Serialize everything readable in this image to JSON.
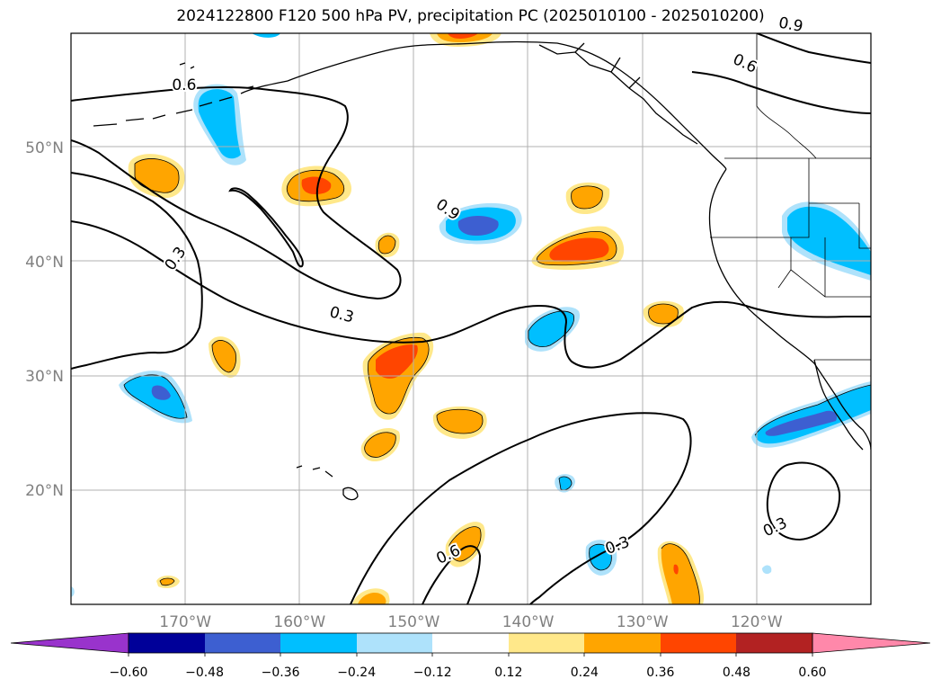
{
  "title": "2024122800 F120 500 hPa PV, precipitation PC (2025010100 - 2025010200)",
  "map": {
    "lon_range": [
      -180,
      -110
    ],
    "lat_range": [
      10,
      60
    ],
    "lat_labels": [
      {
        "lat": 50,
        "text": "50°N"
      },
      {
        "lat": 40,
        "text": "40°N"
      },
      {
        "lat": 30,
        "text": "30°N"
      },
      {
        "lat": 20,
        "text": "20°N"
      }
    ],
    "lon_labels": [
      {
        "lon": -170,
        "text": "170°W"
      },
      {
        "lon": -160,
        "text": "160°W"
      },
      {
        "lon": -150,
        "text": "150°W"
      },
      {
        "lon": -140,
        "text": "140°W"
      },
      {
        "lon": -130,
        "text": "130°W"
      },
      {
        "lon": -120,
        "text": "120°W"
      }
    ],
    "contour_labels": [
      {
        "text": "0.6",
        "lon": -170.1,
        "lat": 55.5,
        "rot": 0
      },
      {
        "text": "0.9",
        "lon": -147.0,
        "lat": 44.6,
        "rot": 35
      },
      {
        "text": "0.3",
        "lon": -170.9,
        "lat": 40.3,
        "rot": -55
      },
      {
        "text": "0.3",
        "lon": -156.3,
        "lat": 35.4,
        "rot": 15
      },
      {
        "text": "0.6",
        "lon": -147.0,
        "lat": 14.4,
        "rot": -25
      },
      {
        "text": "0.3",
        "lon": -132.2,
        "lat": 15.2,
        "rot": -20
      },
      {
        "text": "0.3",
        "lon": -118.4,
        "lat": 16.8,
        "rot": -25
      },
      {
        "text": "0.9",
        "lon": -117.0,
        "lat": 60.8,
        "rot": 10
      },
      {
        "text": "0.6",
        "lon": -121.0,
        "lat": 57.4,
        "rot": 25
      }
    ]
  },
  "colorbar": {
    "tick_labels": [
      "−0.60",
      "−0.48",
      "−0.36",
      "−0.24",
      "−0.12",
      "0.12",
      "0.24",
      "0.36",
      "0.48",
      "0.60"
    ],
    "colors": [
      "#9933cc",
      "#000099",
      "#3d5fd1",
      "#00bfff",
      "#aee2fb",
      "#ffffff",
      "#ffe88a",
      "#ffa500",
      "#ff4500",
      "#b22222",
      "#ff88aa"
    ]
  }
}
